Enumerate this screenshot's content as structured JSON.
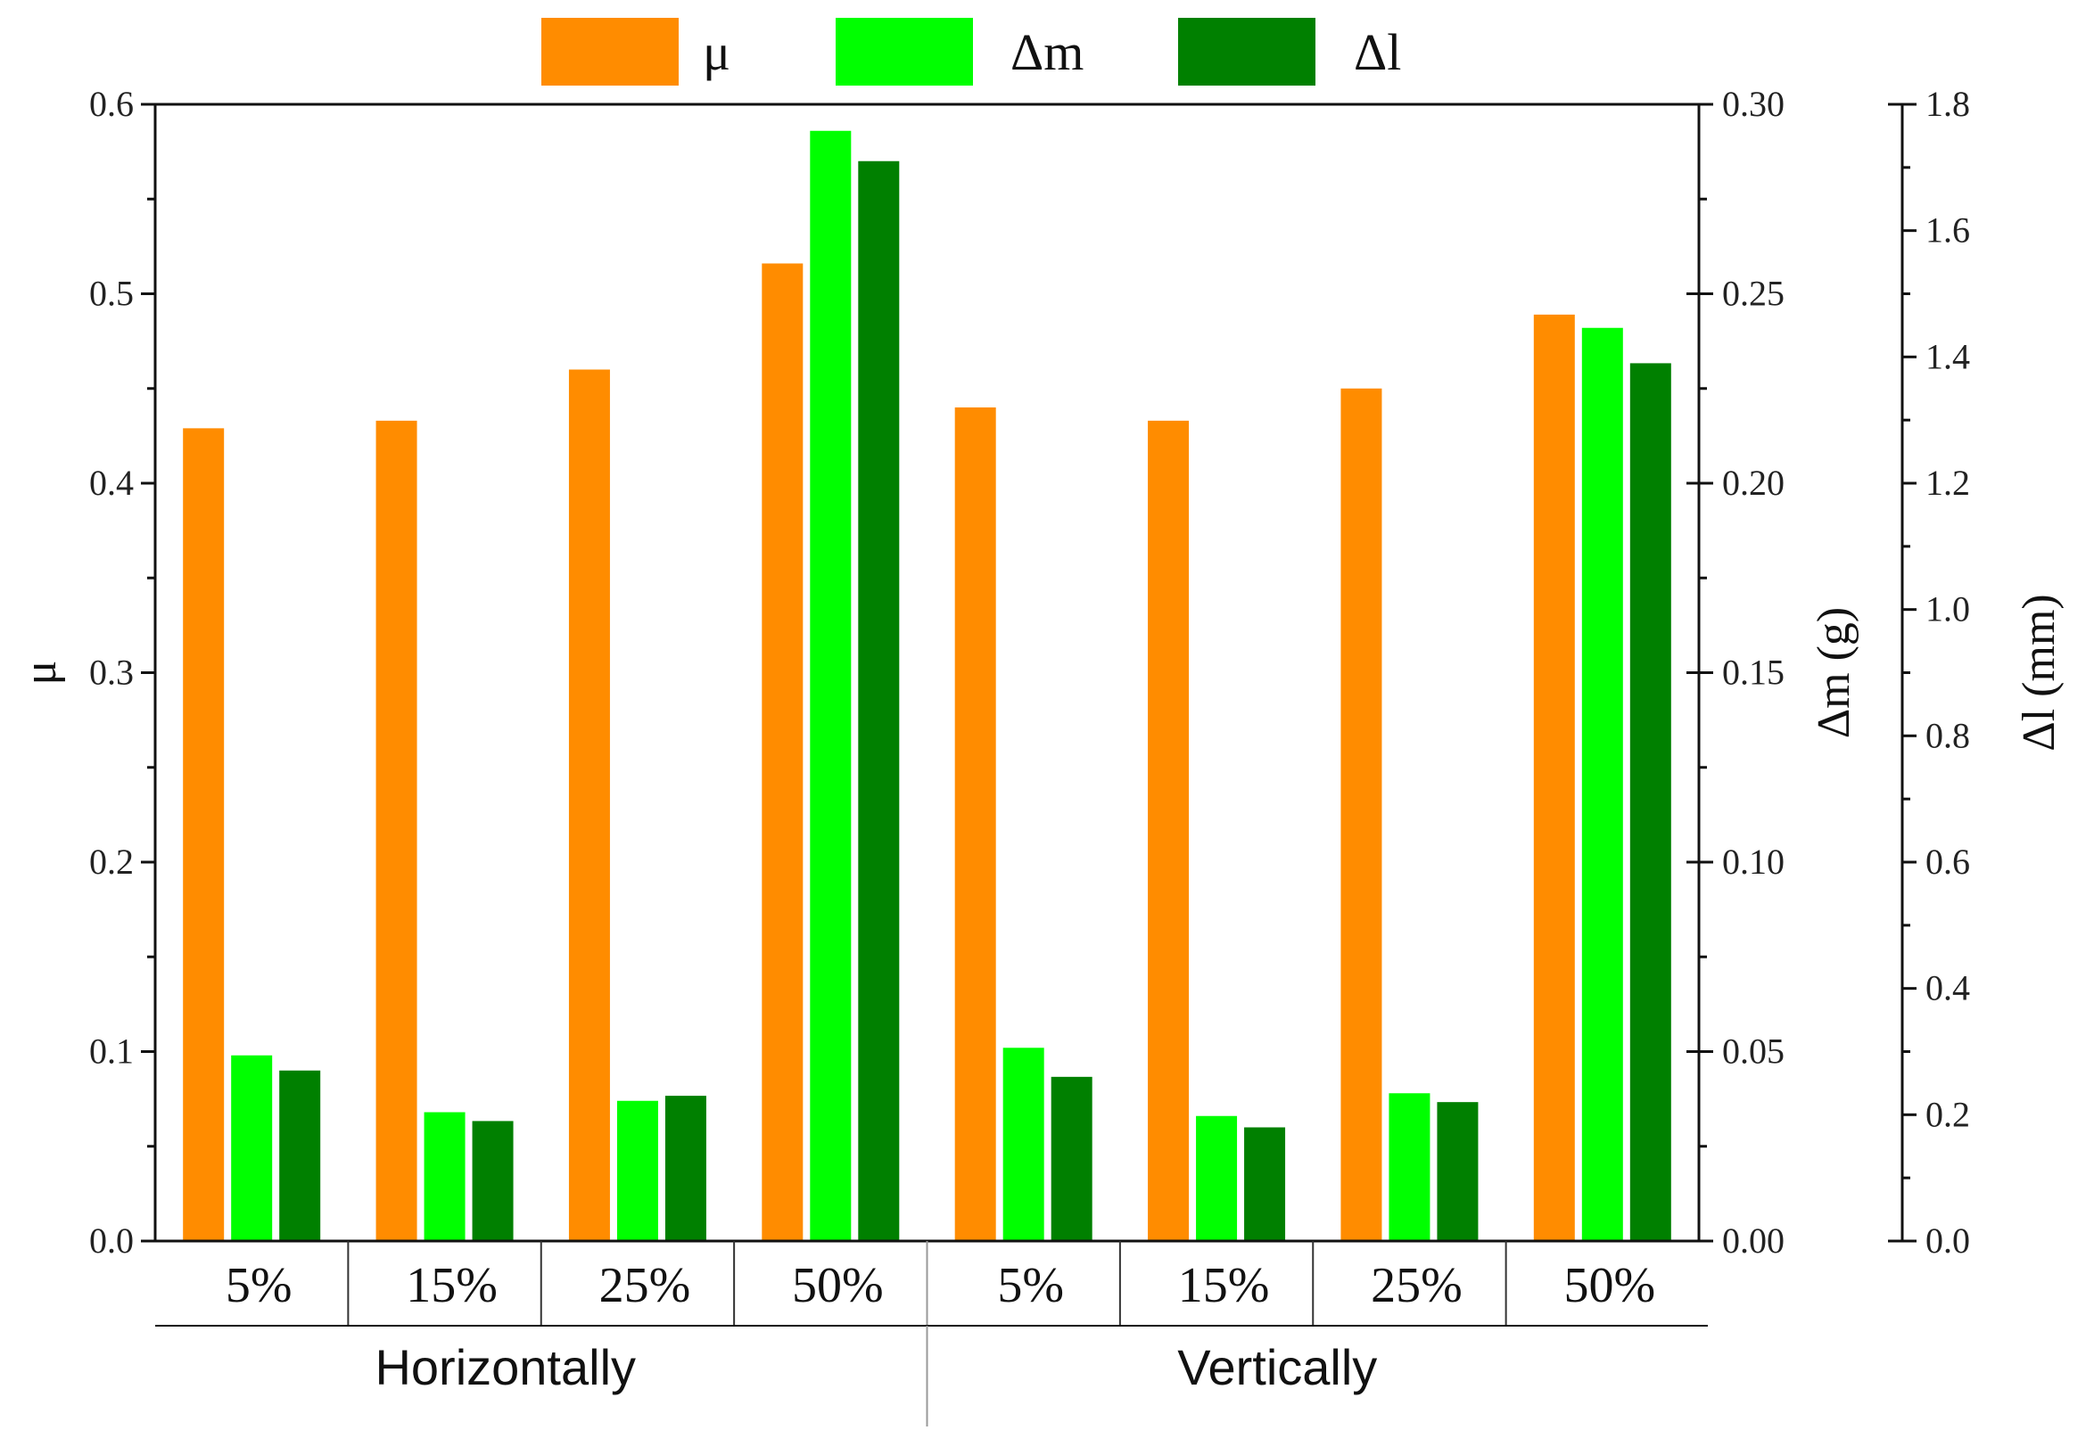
{
  "chart_data": {
    "type": "bar",
    "categories": [
      "5%",
      "15%",
      "25%",
      "50%",
      "5%",
      "15%",
      "25%",
      "50%"
    ],
    "groups": [
      {
        "label": "Horizontally",
        "category_count": 4
      },
      {
        "label": "Vertically",
        "category_count": 4
      }
    ],
    "series": [
      {
        "name": "μ",
        "color": "#FF8C00",
        "axis": "mu",
        "values": [
          0.429,
          0.433,
          0.46,
          0.516,
          0.44,
          0.433,
          0.45,
          0.489
        ]
      },
      {
        "name": "Δm",
        "color": "#00FF00",
        "axis": "dm",
        "values": [
          0.049,
          0.034,
          0.037,
          0.293,
          0.051,
          0.033,
          0.039,
          0.241
        ]
      },
      {
        "name": "Δl",
        "color": "#008000",
        "axis": "dl",
        "values": [
          0.27,
          0.19,
          0.23,
          1.71,
          0.26,
          0.18,
          0.22,
          1.39
        ]
      }
    ],
    "axes": {
      "mu": {
        "label": "μ",
        "ylim": [
          0,
          0.6
        ],
        "ticks": [
          "0.0",
          "0.1",
          "0.2",
          "0.3",
          "0.4",
          "0.5",
          "0.6"
        ]
      },
      "dm": {
        "label": "Δm (g)",
        "ylim": [
          0,
          0.3
        ],
        "ticks": [
          "0.00",
          "0.05",
          "0.10",
          "0.15",
          "0.20",
          "0.25",
          "0.30"
        ]
      },
      "dl": {
        "label": "Δl (mm)",
        "ylim": [
          0,
          1.8
        ],
        "ticks": [
          "0.0",
          "0.2",
          "0.4",
          "0.6",
          "0.8",
          "1.0",
          "1.2",
          "1.4",
          "1.6",
          "1.8"
        ]
      }
    },
    "legend": {
      "position": "top-center"
    },
    "grid": false
  }
}
